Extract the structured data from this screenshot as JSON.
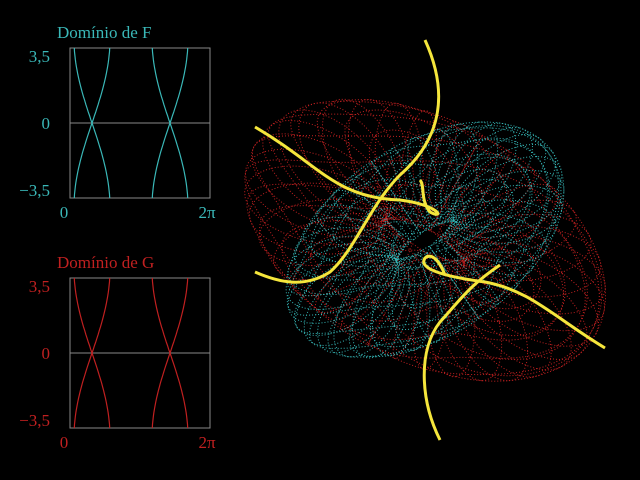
{
  "panels": [
    {
      "title": "Domínio de F",
      "yticks": [
        "3,5",
        "0",
        "−3,5"
      ],
      "xticks": [
        "0",
        "2π"
      ]
    },
    {
      "title": "Domínio de G",
      "yticks": [
        "3,5",
        "0",
        "−3,5"
      ],
      "xticks": [
        "0",
        "2π"
      ]
    }
  ]
}
